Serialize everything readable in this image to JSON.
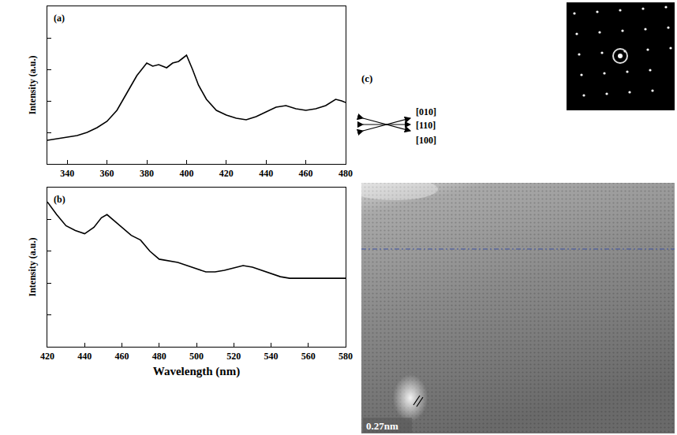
{
  "chart_data": [
    {
      "type": "line",
      "title": "(a)",
      "y_label": "Intensity (a.u.)",
      "color": "#000000",
      "x": [
        330,
        335,
        340,
        345,
        350,
        355,
        360,
        365,
        370,
        375,
        380,
        383,
        386,
        390,
        393,
        396,
        398,
        400,
        403,
        406,
        410,
        415,
        420,
        425,
        430,
        435,
        440,
        445,
        450,
        455,
        460,
        465,
        470,
        475,
        478,
        480
      ],
      "values": [
        1.5,
        1.6,
        1.7,
        1.8,
        2.0,
        2.3,
        2.7,
        3.4,
        4.5,
        5.6,
        6.4,
        6.2,
        6.3,
        6.1,
        6.4,
        6.5,
        6.7,
        6.9,
        6.0,
        5.0,
        4.1,
        3.4,
        3.1,
        2.9,
        2.8,
        3.0,
        3.3,
        3.6,
        3.7,
        3.5,
        3.4,
        3.5,
        3.7,
        4.1,
        4.0,
        3.9
      ],
      "xlim": [
        330,
        480
      ],
      "xticks": [
        340,
        360,
        380,
        400,
        420,
        440,
        460,
        480
      ],
      "ylim": [
        0,
        10
      ],
      "yticks": [
        2,
        4,
        6,
        8
      ],
      "grid": false,
      "tick_labels": "x"
    },
    {
      "type": "line",
      "title": "(b)",
      "x_label": "Wavelength (nm)",
      "y_label": "Intensity (a.u.)",
      "color": "#000000",
      "x": [
        420,
        425,
        430,
        435,
        440,
        445,
        449,
        452,
        456,
        460,
        465,
        470,
        475,
        480,
        485,
        490,
        495,
        500,
        505,
        510,
        515,
        520,
        525,
        530,
        535,
        540,
        545,
        550,
        560,
        570,
        580
      ],
      "values": [
        9.1,
        8.3,
        7.6,
        7.3,
        7.1,
        7.5,
        8.1,
        8.3,
        7.9,
        7.5,
        7.0,
        6.7,
        6.0,
        5.5,
        5.4,
        5.3,
        5.1,
        4.9,
        4.7,
        4.7,
        4.8,
        4.95,
        5.1,
        5.0,
        4.8,
        4.6,
        4.4,
        4.3,
        4.3,
        4.3,
        4.3
      ],
      "xlim": [
        420,
        580
      ],
      "xticks": [
        420,
        440,
        460,
        480,
        500,
        520,
        540,
        560,
        580
      ],
      "ylim": [
        0,
        10
      ],
      "yticks": [
        2,
        4,
        6,
        8
      ],
      "grid": false,
      "tick_labels": "x"
    }
  ],
  "image_panel": {
    "label": "(c)",
    "directions": [
      "[010]",
      "[110]",
      "[100]"
    ],
    "scale_bar": "0.27nm"
  }
}
